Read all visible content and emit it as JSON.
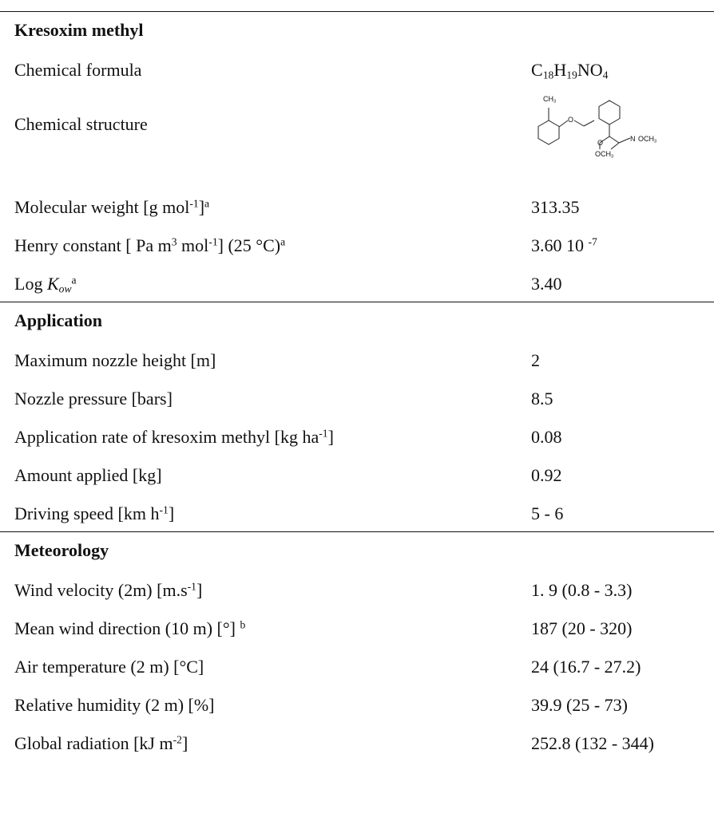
{
  "sections": [
    {
      "title": "Kresoxim methyl",
      "rows": [
        {
          "label": [
            {
              "text": "Chemical formula"
            }
          ],
          "value": [
            {
              "text": "C"
            },
            {
              "text": "18",
              "style": "sub"
            },
            {
              "text": "H"
            },
            {
              "text": "19",
              "style": "sub"
            },
            {
              "text": "NO"
            },
            {
              "text": "4",
              "style": "sub"
            }
          ]
        },
        {
          "label": [
            {
              "text": "Chemical structure"
            }
          ],
          "structure": {
            "labels": [
              [
                {
                  "text": "CH"
                },
                {
                  "text": "3",
                  "style": "sub"
                }
              ],
              [
                {
                  "text": "O"
                }
              ],
              [
                {
                  "text": "O"
                }
              ],
              [
                {
                  "text": "N"
                }
              ],
              [
                {
                  "text": "OCH"
                },
                {
                  "text": "3",
                  "style": "sub"
                }
              ],
              [
                {
                  "text": "OCH"
                },
                {
                  "text": "3",
                  "style": "sub"
                }
              ]
            ]
          }
        },
        {
          "label": [
            {
              "text": "Molecular weight [g mol"
            },
            {
              "text": "-1",
              "style": "sup"
            },
            {
              "text": "]"
            },
            {
              "text": "a",
              "style": "sup"
            }
          ],
          "value": [
            {
              "text": "313.35"
            }
          ]
        },
        {
          "label": [
            {
              "text": "Henry constant [ Pa m"
            },
            {
              "text": "3",
              "style": "sup"
            },
            {
              "text": " mol"
            },
            {
              "text": "-1",
              "style": "sup"
            },
            {
              "text": "] (25 °C)"
            },
            {
              "text": "a",
              "style": "sup"
            }
          ],
          "value": [
            {
              "text": "3.60 10 "
            },
            {
              "text": "-7",
              "style": "sup"
            }
          ]
        },
        {
          "label": [
            {
              "text": "Log "
            },
            {
              "text": "K",
              "style": "italic"
            },
            {
              "text": "ow",
              "style": "italic-sub"
            },
            {
              "text": "a",
              "style": "sup"
            }
          ],
          "value": [
            {
              "text": "3.40"
            }
          ]
        }
      ]
    },
    {
      "title": "Application",
      "rows": [
        {
          "label": [
            {
              "text": "Maximum nozzle height [m]"
            }
          ],
          "value": [
            {
              "text": "2"
            }
          ]
        },
        {
          "label": [
            {
              "text": "Nozzle pressure [bars]"
            }
          ],
          "value": [
            {
              "text": "8.5"
            }
          ]
        },
        {
          "label": [
            {
              "text": "Application rate of kresoxim methyl [kg ha"
            },
            {
              "text": "-1",
              "style": "sup"
            },
            {
              "text": "]"
            }
          ],
          "value": [
            {
              "text": "0.08"
            }
          ]
        },
        {
          "label": [
            {
              "text": "Amount applied [kg]"
            }
          ],
          "value": [
            {
              "text": "0.92"
            }
          ]
        },
        {
          "label": [
            {
              "text": "Driving speed [km h"
            },
            {
              "text": "-1",
              "style": "sup"
            },
            {
              "text": "]"
            }
          ],
          "value": [
            {
              "text": "5 - 6"
            }
          ]
        }
      ]
    },
    {
      "title": "Meteorology",
      "rows": [
        {
          "label": [
            {
              "text": "Wind velocity (2m) [m.s"
            },
            {
              "text": "-1",
              "style": "sup"
            },
            {
              "text": "]"
            }
          ],
          "value": [
            {
              "text": "1. 9 (0.8 - 3.3)"
            }
          ]
        },
        {
          "label": [
            {
              "text": "Mean wind direction (10 m) [°] "
            },
            {
              "text": "b",
              "style": "sup"
            }
          ],
          "value": [
            {
              "text": "187 (20 - 320)"
            }
          ]
        },
        {
          "label": [
            {
              "text": "Air temperature (2 m) [°C]"
            }
          ],
          "value": [
            {
              "text": "24 (16.7 - 27.2)"
            }
          ]
        },
        {
          "label": [
            {
              "text": "Relative humidity (2 m) [%]"
            }
          ],
          "value": [
            {
              "text": "39.9 (25 - 73)"
            }
          ]
        },
        {
          "label": [
            {
              "text": "Global radiation [kJ m"
            },
            {
              "text": "-2",
              "style": "sup"
            },
            {
              "text": "]"
            }
          ],
          "value": [
            {
              "text": "252.8 (132 - 344)"
            }
          ]
        }
      ]
    }
  ]
}
